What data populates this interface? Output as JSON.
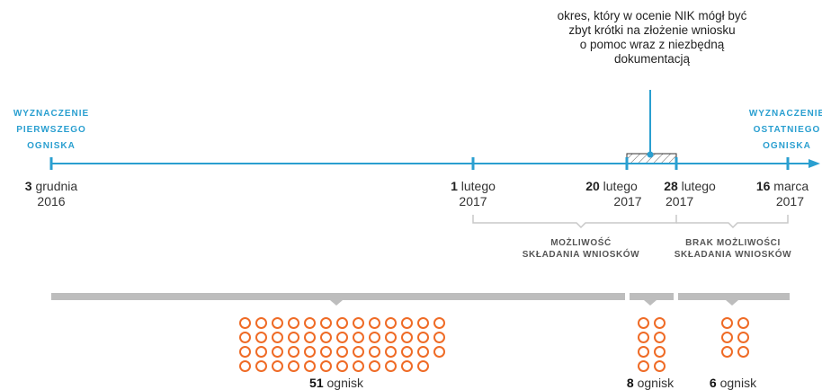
{
  "note": {
    "lines": [
      "okres, który w ocenie NIK mógł być",
      "zbyt krótki na złożenie wniosku",
      "o pomoc wraz z niezbędną",
      "dokumentacją"
    ]
  },
  "first_outbreak": {
    "lines": [
      "WYZNACZENIE",
      "PIERWSZEGO",
      "OGNISKA"
    ]
  },
  "last_outbreak": {
    "lines": [
      "WYZNACZENIE",
      "OSTATNIEGO",
      "OGNISKA"
    ]
  },
  "dates": [
    {
      "day": "3",
      "month": "grudnia",
      "year": "2016"
    },
    {
      "day": "1",
      "month": "lutego",
      "year": "2017"
    },
    {
      "day": "20",
      "month": "lutego",
      "year": "2017"
    },
    {
      "day": "28",
      "month": "lutego",
      "year": "2017"
    },
    {
      "day": "16",
      "month": "marca",
      "year": "2017"
    }
  ],
  "periods": [
    {
      "lines": [
        "MOŻLIWOŚĆ",
        "SKŁADANIA WNIOSKÓW"
      ]
    },
    {
      "lines": [
        "BRAK MOŻLIWOŚCI",
        "SKŁADANIA WNIOSKÓW"
      ]
    }
  ],
  "outbreak_groups": [
    {
      "count": 51,
      "unit": "ognisk"
    },
    {
      "count": 8,
      "unit": "ognisk"
    },
    {
      "count": 6,
      "unit": "ognisk"
    }
  ],
  "colors": {
    "timeline": "#2a9fd0",
    "bracket": "#c8c8c8",
    "bar": "#bdbdbd",
    "circle": "#ef6b26"
  }
}
